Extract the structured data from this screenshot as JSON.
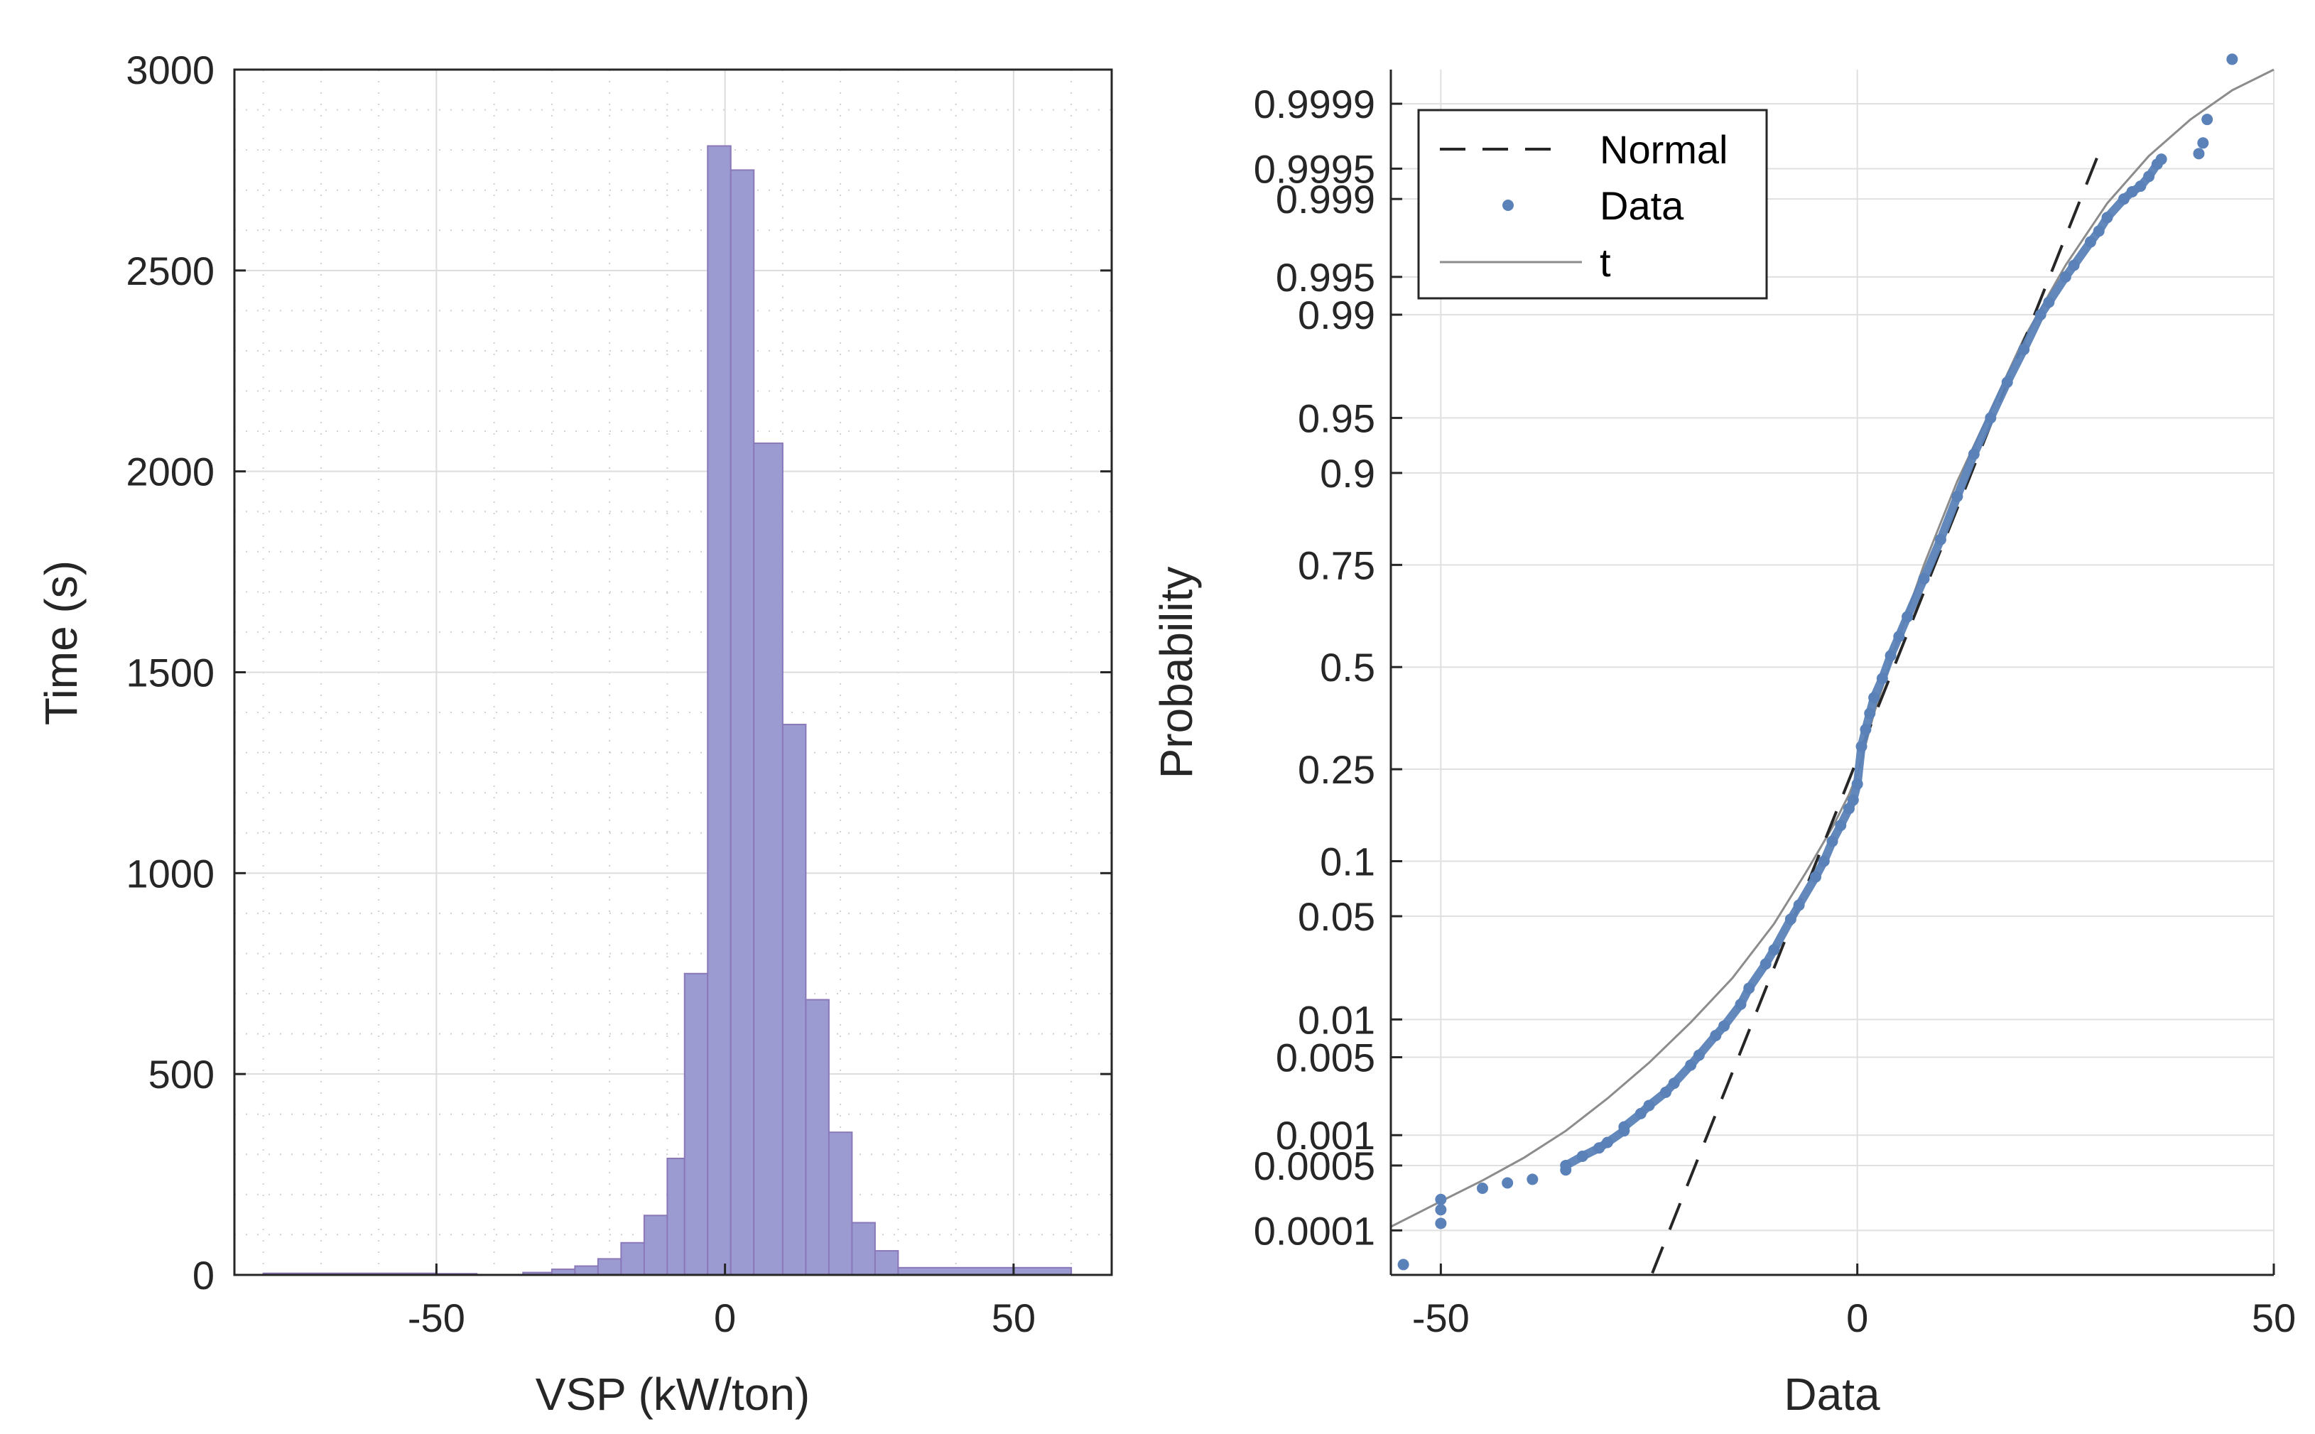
{
  "chart_data": [
    {
      "type": "bar",
      "title": "",
      "xlabel": "VSP (kW/ton)",
      "ylabel": "Time (s)",
      "xlim": [
        -85,
        67
      ],
      "ylim": [
        0,
        3000
      ],
      "xticks": [
        -50,
        0,
        50
      ],
      "xtick_labels": [
        "-50",
        "0",
        "50"
      ],
      "yticks": [
        0,
        500,
        1000,
        1500,
        2000,
        2500,
        3000
      ],
      "ytick_labels": [
        "0",
        "500",
        "1000",
        "1500",
        "2000",
        "2500",
        "3000"
      ],
      "grid": true,
      "minor_grid": true,
      "bar_color": "#9b9bd2",
      "bar_edge": "#8a78b8",
      "bins": [
        {
          "from": -80,
          "to": -50,
          "value": 4
        },
        {
          "from": -50,
          "to": -43,
          "value": 3
        },
        {
          "from": -35,
          "to": -30,
          "value": 6
        },
        {
          "from": -30,
          "to": -26,
          "value": 14
        },
        {
          "from": -26,
          "to": -22,
          "value": 22
        },
        {
          "from": -22,
          "to": -18,
          "value": 40
        },
        {
          "from": -18,
          "to": -14,
          "value": 80
        },
        {
          "from": -14,
          "to": -10,
          "value": 148
        },
        {
          "from": -10,
          "to": -7,
          "value": 290
        },
        {
          "from": -7,
          "to": -3,
          "value": 750
        },
        {
          "from": -3,
          "to": 1,
          "value": 2810
        },
        {
          "from": 1,
          "to": 5,
          "value": 2750
        },
        {
          "from": 5,
          "to": 10,
          "value": 2070
        },
        {
          "from": 10,
          "to": 14,
          "value": 1370
        },
        {
          "from": 14,
          "to": 18,
          "value": 685
        },
        {
          "from": 18,
          "to": 22,
          "value": 355
        },
        {
          "from": 22,
          "to": 26,
          "value": 130
        },
        {
          "from": 26,
          "to": 30,
          "value": 60
        },
        {
          "from": 30,
          "to": 60,
          "value": 18
        }
      ]
    },
    {
      "type": "scatter",
      "title": "",
      "xlabel": "Data",
      "ylabel": "Probability",
      "xlim": [
        -56,
        50
      ],
      "xticks": [
        -50,
        0,
        50
      ],
      "xtick_labels": [
        "-50",
        "0",
        "50"
      ],
      "ylim_probability": [
        3e-05,
        0.99996
      ],
      "yticks": [
        0.0001,
        0.0005,
        0.001,
        0.005,
        0.01,
        0.05,
        0.1,
        0.25,
        0.5,
        0.75,
        0.9,
        0.95,
        0.99,
        0.995,
        0.999,
        0.9995,
        0.9999
      ],
      "ytick_labels": [
        "0.0001",
        "0.0005",
        "0.001",
        "0.005",
        "0.01",
        "0.05",
        "0.1",
        "0.25",
        "0.5",
        "0.75",
        "0.9",
        "0.95",
        "0.99",
        "0.995",
        "0.999",
        "0.9995",
        "0.9999"
      ],
      "grid": true,
      "legend": {
        "position": "top-left",
        "entries": [
          {
            "label": "Normal",
            "style": "dashed",
            "color": "#262626"
          },
          {
            "label": "Data",
            "style": "marker",
            "color": "#5b82b8"
          },
          {
            "label": "t",
            "style": "solid",
            "color": "#8c8c8c"
          }
        ]
      },
      "series": [
        {
          "name": "Normal",
          "style": "dashed",
          "color": "#262626",
          "mean": 4.4,
          "sd": 7.25
        },
        {
          "name": "t",
          "style": "solid",
          "color": "#8c8c8c",
          "x": [
            -56,
            -50,
            -45,
            -40,
            -35,
            -30,
            -25,
            -20,
            -15,
            -10,
            -6,
            -3,
            -1,
            0,
            0.5,
            2,
            5,
            8,
            12,
            16,
            20,
            25,
            30,
            35,
            40,
            45,
            50
          ],
          "p": [
            0.00011,
            0.00021,
            0.00035,
            0.0006,
            0.0011,
            0.0022,
            0.0045,
            0.0095,
            0.02,
            0.045,
            0.09,
            0.145,
            0.2,
            0.24,
            0.27,
            0.38,
            0.58,
            0.75,
            0.89,
            0.955,
            0.985,
            0.996,
            0.9989,
            0.99963,
            0.99985,
            0.99993,
            0.99996
          ]
        },
        {
          "name": "Data",
          "style": "marker",
          "color": "#5b82b8",
          "x": [
            -54.5,
            -50,
            -50,
            -50,
            -45,
            -42,
            -39,
            -35,
            -35,
            -33,
            -31,
            -30,
            -28,
            -28,
            -26,
            -25,
            -23,
            -22,
            -20,
            -19,
            -17,
            -16,
            -14,
            -13,
            -11,
            -10,
            -8,
            -7,
            -5,
            -4,
            -3,
            -2,
            -1,
            -0.5,
            0,
            0.5,
            1,
            1.5,
            2,
            3,
            4,
            5,
            6,
            8,
            10,
            12,
            14,
            16,
            18,
            20,
            22,
            23,
            25,
            26,
            28,
            29,
            30,
            32,
            33,
            34,
            35,
            36,
            36.5,
            41,
            41.5,
            42,
            45
          ],
          "p": [
            4e-05,
            0.00012,
            0.00017,
            0.00022,
            0.00029,
            0.00033,
            0.00036,
            0.00045,
            0.0005,
            0.00062,
            0.00075,
            0.00085,
            0.0011,
            0.0012,
            0.0016,
            0.0019,
            0.0025,
            0.003,
            0.0043,
            0.0052,
            0.0075,
            0.0089,
            0.013,
            0.017,
            0.025,
            0.031,
            0.048,
            0.058,
            0.083,
            0.1,
            0.125,
            0.148,
            0.175,
            0.19,
            0.22,
            0.3,
            0.34,
            0.38,
            0.42,
            0.47,
            0.53,
            0.58,
            0.63,
            0.72,
            0.8,
            0.87,
            0.92,
            0.95,
            0.97,
            0.982,
            0.99,
            0.992,
            0.995,
            0.996,
            0.9975,
            0.998,
            0.9985,
            0.999,
            0.99915,
            0.99925,
            0.9994,
            0.99955,
            0.9996,
            0.99965,
            0.99973,
            0.99985,
            0.99997
          ]
        }
      ]
    }
  ]
}
